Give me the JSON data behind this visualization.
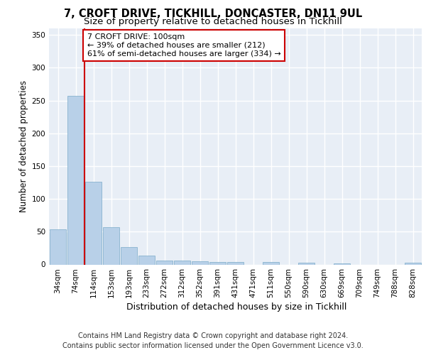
{
  "title": "7, CROFT DRIVE, TICKHILL, DONCASTER, DN11 9UL",
  "subtitle": "Size of property relative to detached houses in Tickhill",
  "xlabel": "Distribution of detached houses by size in Tickhill",
  "ylabel": "Number of detached properties",
  "categories": [
    "34sqm",
    "74sqm",
    "114sqm",
    "153sqm",
    "193sqm",
    "233sqm",
    "272sqm",
    "312sqm",
    "352sqm",
    "391sqm",
    "431sqm",
    "471sqm",
    "511sqm",
    "550sqm",
    "590sqm",
    "630sqm",
    "669sqm",
    "709sqm",
    "749sqm",
    "788sqm",
    "828sqm"
  ],
  "values": [
    54,
    257,
    126,
    57,
    26,
    14,
    6,
    6,
    5,
    4,
    4,
    0,
    4,
    0,
    3,
    0,
    2,
    0,
    0,
    0,
    3
  ],
  "bar_color": "#b8d0e8",
  "bar_edge_color": "#7aaac8",
  "background_color": "#e8eef6",
  "grid_color": "#ffffff",
  "annotation_box_text": "7 CROFT DRIVE: 100sqm\n← 39% of detached houses are smaller (212)\n61% of semi-detached houses are larger (334) →",
  "annotation_box_color": "#ffffff",
  "annotation_box_edge_color": "#cc0000",
  "red_line_x": 1.5,
  "ylim": [
    0,
    360
  ],
  "yticks": [
    0,
    50,
    100,
    150,
    200,
    250,
    300,
    350
  ],
  "footer_line1": "Contains HM Land Registry data © Crown copyright and database right 2024.",
  "footer_line2": "Contains public sector information licensed under the Open Government Licence v3.0.",
  "title_fontsize": 10.5,
  "subtitle_fontsize": 9.5,
  "axis_label_fontsize": 8.5,
  "tick_fontsize": 7.5,
  "annotation_fontsize": 8,
  "footer_fontsize": 7
}
